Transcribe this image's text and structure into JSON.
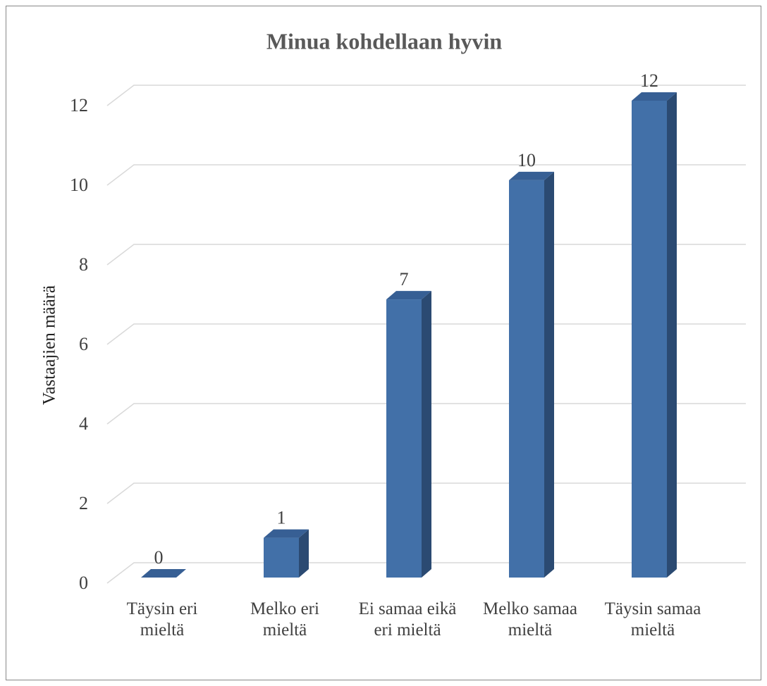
{
  "chart_data": {
    "type": "bar3d",
    "title": "Minua kohdellaan hyvin",
    "y_label": "Vastaajien määrä",
    "categories": [
      "Täysin eri mieltä",
      "Melko eri mieltä",
      "Ei samaa eikä eri mieltä",
      "Melko samaa mieltä",
      "Täysin samaa mieltä"
    ],
    "values": [
      0,
      1,
      7,
      10,
      12
    ],
    "color": "#4270a8",
    "ylim": [
      0,
      12
    ],
    "yticks": [
      0,
      2,
      4,
      6,
      8,
      10,
      12
    ],
    "grid": true
  }
}
